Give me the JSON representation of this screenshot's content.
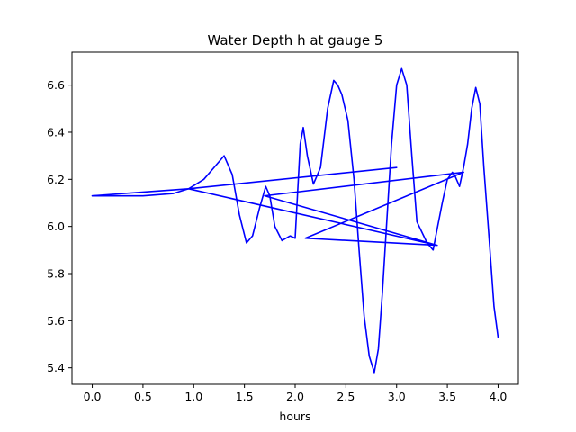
{
  "chart_data": {
    "type": "line",
    "title": "Water Depth h at gauge 5",
    "xlabel": "hours",
    "ylabel": "",
    "xlim": [
      -0.2,
      4.2
    ],
    "ylim": [
      5.33,
      6.74
    ],
    "grid": false,
    "legend": "none",
    "xticks": [
      0.0,
      0.5,
      1.0,
      1.5,
      2.0,
      2.5,
      3.0,
      3.5,
      4.0
    ],
    "xtick_labels": [
      "0.0",
      "0.5",
      "1.0",
      "1.5",
      "2.0",
      "2.5",
      "3.0",
      "3.5",
      "4.0"
    ],
    "yticks": [
      5.4,
      5.6,
      5.8,
      6.0,
      6.2,
      6.4,
      6.6
    ],
    "ytick_labels": [
      "5.4",
      "5.6",
      "5.8",
      "6.0",
      "6.2",
      "6.4",
      "6.6"
    ],
    "series": [
      {
        "color": "#0000ff",
        "x": [
          0.0,
          0.5,
          0.8,
          0.95,
          1.1,
          1.2,
          1.3,
          1.38,
          1.45,
          1.52,
          1.58,
          1.65,
          1.71,
          1.75,
          1.8,
          1.87,
          1.95,
          2.0,
          2.05,
          2.08,
          2.12,
          2.18,
          2.25,
          2.32,
          2.38,
          2.42,
          2.46,
          2.52,
          2.58,
          2.63,
          2.68,
          2.73,
          2.78,
          2.82,
          2.86,
          2.9,
          2.95,
          3.0,
          3.05,
          3.1,
          3.15,
          3.2,
          3.3,
          3.36,
          3.4,
          3.45,
          3.5,
          3.55,
          3.58,
          3.62,
          3.66,
          3.7,
          3.74,
          3.78,
          3.82,
          3.86,
          3.92,
          3.96,
          4.0
        ],
        "y": [
          6.13,
          6.13,
          6.14,
          6.16,
          6.2,
          6.25,
          6.3,
          6.22,
          6.05,
          5.93,
          5.96,
          6.08,
          6.17,
          6.13,
          6.0,
          5.94,
          5.96,
          5.95,
          6.35,
          6.42,
          6.3,
          6.18,
          6.25,
          6.5,
          6.62,
          6.6,
          6.56,
          6.45,
          6.2,
          5.9,
          5.62,
          5.45,
          5.38,
          5.48,
          5.72,
          6.0,
          6.35,
          6.6,
          6.67,
          6.6,
          6.3,
          6.02,
          5.93,
          5.9,
          5.99,
          6.1,
          6.2,
          6.23,
          6.21,
          6.17,
          6.25,
          6.35,
          6.5,
          6.59,
          6.52,
          6.25,
          5.9,
          5.66,
          5.53
        ]
      },
      {
        "color": "#0000ff",
        "x": [
          0.0,
          0.95,
          3.0,
          0.95,
          3.4,
          1.7,
          3.66,
          2.1,
          3.4
        ],
        "y": [
          6.13,
          6.16,
          6.25,
          6.16,
          5.92,
          6.13,
          6.23,
          5.95,
          5.92
        ]
      }
    ]
  }
}
